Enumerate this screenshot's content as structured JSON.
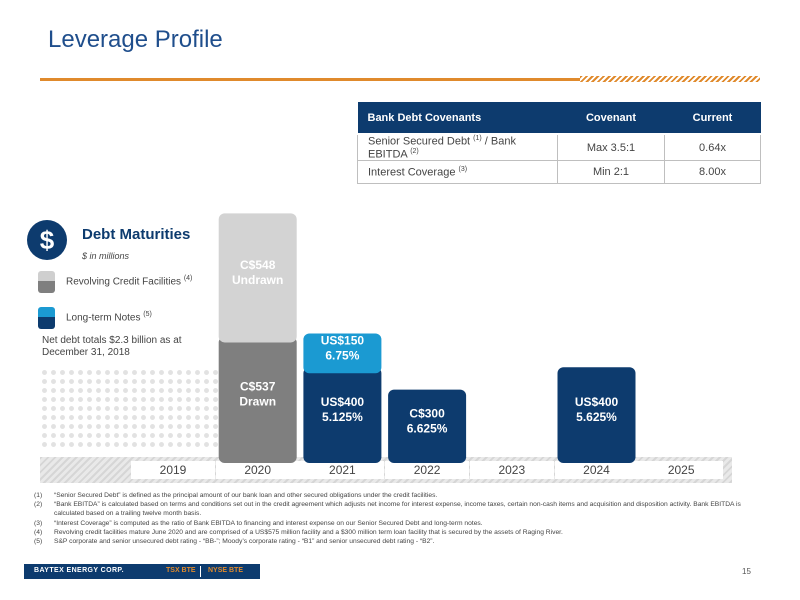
{
  "title": "Leverage Profile",
  "covenants": {
    "headers": [
      "Bank Debt Covenants",
      "Covenant",
      "Current"
    ],
    "rows": [
      {
        "label": "Senior Secured Debt ",
        "sup1": "(1)",
        "mid": " / Bank EBITDA ",
        "sup2": "(2)",
        "covenant": "Max 3.5:1",
        "current": "0.64x"
      },
      {
        "label": "Interest Coverage ",
        "sup1": "(3)",
        "mid": "",
        "sup2": "",
        "covenant": "Min 2:1",
        "current": "8.00x"
      }
    ]
  },
  "debt_maturities": {
    "icon": "dollar-icon",
    "icon_glyph": "$",
    "title": "Debt Maturities",
    "subtitle": "$ in millions",
    "legend": [
      {
        "label": "Revolving Credit Facilities ",
        "sup": "(4)"
      },
      {
        "label": "Long-term Notes ",
        "sup": "(5)"
      }
    ],
    "net_debt_note": "Net debt totals $2.3 billion as at December 31, 2018"
  },
  "chart_data": {
    "type": "bar",
    "stacked": true,
    "categories": [
      "2019",
      "2020",
      "2021",
      "2022",
      "2023",
      "2024",
      "2025"
    ],
    "series": [
      {
        "name": "Revolving Credit Facilities",
        "segments": [
          {
            "category": "2020",
            "value": 537,
            "label": [
              "C$537",
              "Drawn"
            ],
            "color": "#7f7f7f"
          },
          {
            "category": "2020",
            "value": 548,
            "label": [
              "C$548",
              "Undrawn"
            ],
            "color": "#d3d3d3"
          }
        ]
      },
      {
        "name": "Long-term Notes",
        "segments": [
          {
            "category": "2021",
            "value": 400,
            "label": [
              "US$400",
              "5.125%"
            ],
            "color": "#0d3b6e"
          },
          {
            "category": "2021",
            "value": 150,
            "label": [
              "US$150",
              "6.75%"
            ],
            "color": "#1b9ad2"
          },
          {
            "category": "2022",
            "value": 300,
            "label": [
              "C$300",
              "6.625%"
            ],
            "color": "#0d3b6e"
          },
          {
            "category": "2024",
            "value": 400,
            "label": [
              "US$400",
              "5.625%"
            ],
            "color": "#0d3b6e"
          }
        ]
      }
    ]
  },
  "footnotes": [
    {
      "n": "(1)",
      "text": "“Senior Secured Debt” is defined as the principal amount of our bank loan and other secured obligations under the credit facilities."
    },
    {
      "n": "(2)",
      "text": "“Bank EBITDA” is calculated based on terms and conditions set out in the credit agreement which adjusts net income for interest expense, income taxes, certain non-cash items and acquisition and disposition activity. Bank EBITDA is calculated based on a trailing twelve month basis."
    },
    {
      "n": "(3)",
      "text": "“Interest Coverage” is computed as the ratio of Bank EBITDA to financing and interest expense on our Senior Secured Debt and long-term notes."
    },
    {
      "n": "(4)",
      "text": "Revolving credit facilities mature June 2020 and are comprised of a US$575 million facility and a $300 million term loan facility that is secured by the assets of Raging River."
    },
    {
      "n": "(5)",
      "text": "S&P corporate and senior unsecured debt rating - “BB-”; Moody’s corporate rating - “B1” and senior unsecured debt rating - “B2”."
    }
  ],
  "footer": {
    "company": "BAYTEX ENERGY CORP.",
    "ticker_tsx": "TSX BTE",
    "ticker_nyse": "NYSE BTE",
    "page_number": "15"
  }
}
